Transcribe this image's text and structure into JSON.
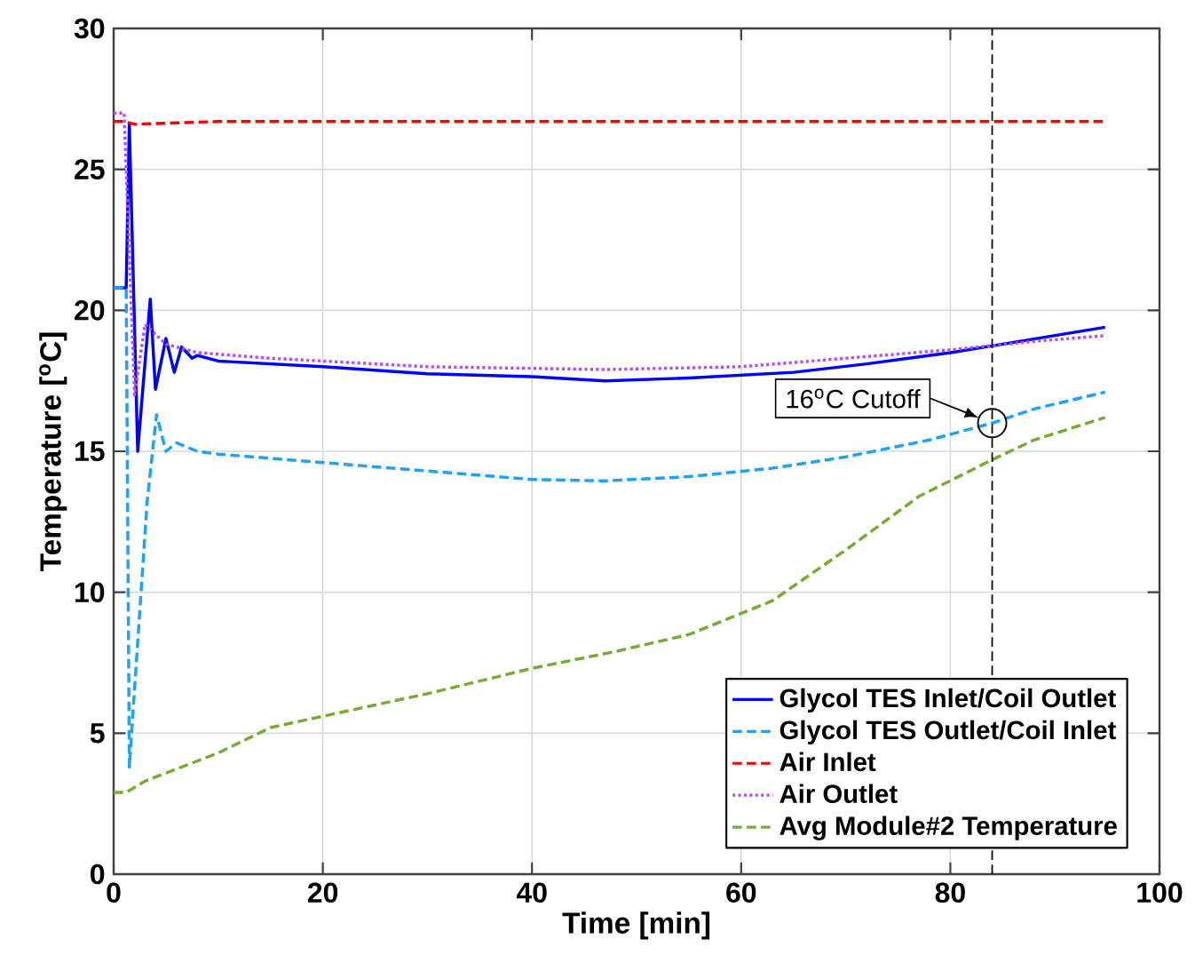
{
  "chart_data": {
    "type": "line",
    "xlabel": "Time [min]",
    "ylabel": "Temperature [$^{o}$C]",
    "xlim": [
      0,
      100
    ],
    "xticks": [
      0,
      20,
      40,
      60,
      80,
      100
    ],
    "ylim": [
      0,
      30
    ],
    "yticks": [
      0,
      5,
      10,
      15,
      20,
      25,
      30
    ],
    "grid": true,
    "legend": "bottom right",
    "ref_lines": [
      {
        "axis": "x",
        "value": 84,
        "color": "#000000",
        "line_style": "dashed"
      }
    ],
    "annotations": [
      {
        "text": "16$^{o}$C Cutoff",
        "x": 84,
        "y": 16
      }
    ],
    "series": [
      {
        "name": "Glycol TES Inlet/Coil Outlet",
        "color": "#0000ff",
        "line_style": "solid",
        "x": [
          0,
          1.2,
          1.5,
          2.3,
          3.5,
          4,
          5,
          5.8,
          6.5,
          7.5,
          8,
          10,
          20,
          30,
          40,
          47,
          55,
          65,
          72,
          80,
          85,
          94.8
        ],
        "values": [
          20.8,
          20.8,
          26.6,
          15,
          20.4,
          17.2,
          19,
          17.8,
          18.7,
          18.3,
          18.4,
          18.2,
          18.0,
          17.75,
          17.65,
          17.5,
          17.6,
          17.8,
          18.1,
          18.5,
          18.8,
          19.4
        ]
      },
      {
        "name": "Glycol TES Outlet/Coil Inlet",
        "color": "#1aa3ff",
        "line_style": "dashed",
        "x": [
          0,
          1.2,
          1.5,
          3.2,
          4.1,
          5,
          6,
          8,
          10,
          20,
          30,
          40,
          47,
          55,
          63,
          70,
          78,
          84,
          88,
          94.8
        ],
        "values": [
          20.8,
          20.8,
          3.8,
          13.2,
          16.3,
          15.0,
          15.3,
          15.0,
          14.9,
          14.6,
          14.3,
          14.0,
          13.95,
          14.1,
          14.4,
          14.8,
          15.4,
          16.0,
          16.5,
          17.1
        ]
      },
      {
        "name": "Air Inlet",
        "color": "#ff0000",
        "line_style": "dashed",
        "x": [
          0,
          1,
          2,
          10,
          30,
          50,
          70,
          94.8
        ],
        "values": [
          26.7,
          26.7,
          26.6,
          26.7,
          26.7,
          26.7,
          26.7,
          26.7
        ]
      },
      {
        "name": "Air Outlet",
        "color": "#b44bff",
        "line_style": "dotted",
        "x": [
          0,
          1,
          2,
          3,
          5,
          8,
          15,
          20,
          30,
          47,
          60,
          70,
          80,
          88,
          94.8
        ],
        "values": [
          27,
          27,
          17,
          19.5,
          18.8,
          18.5,
          18.3,
          18.2,
          18.0,
          17.9,
          18.0,
          18.3,
          18.6,
          18.9,
          19.1
        ]
      },
      {
        "name": "Avg Module#2 Temperature",
        "color": "#77ac30",
        "line_style": "dashed",
        "x": [
          0,
          1.2,
          3,
          10,
          15,
          20,
          25,
          30,
          40,
          48,
          55,
          63,
          70,
          77,
          84,
          88,
          94.8
        ],
        "values": [
          2.9,
          2.9,
          3.3,
          4.3,
          5.2,
          5.6,
          6.0,
          6.4,
          7.3,
          7.9,
          8.5,
          9.7,
          11.5,
          13.4,
          14.7,
          15.4,
          16.2
        ]
      }
    ]
  }
}
